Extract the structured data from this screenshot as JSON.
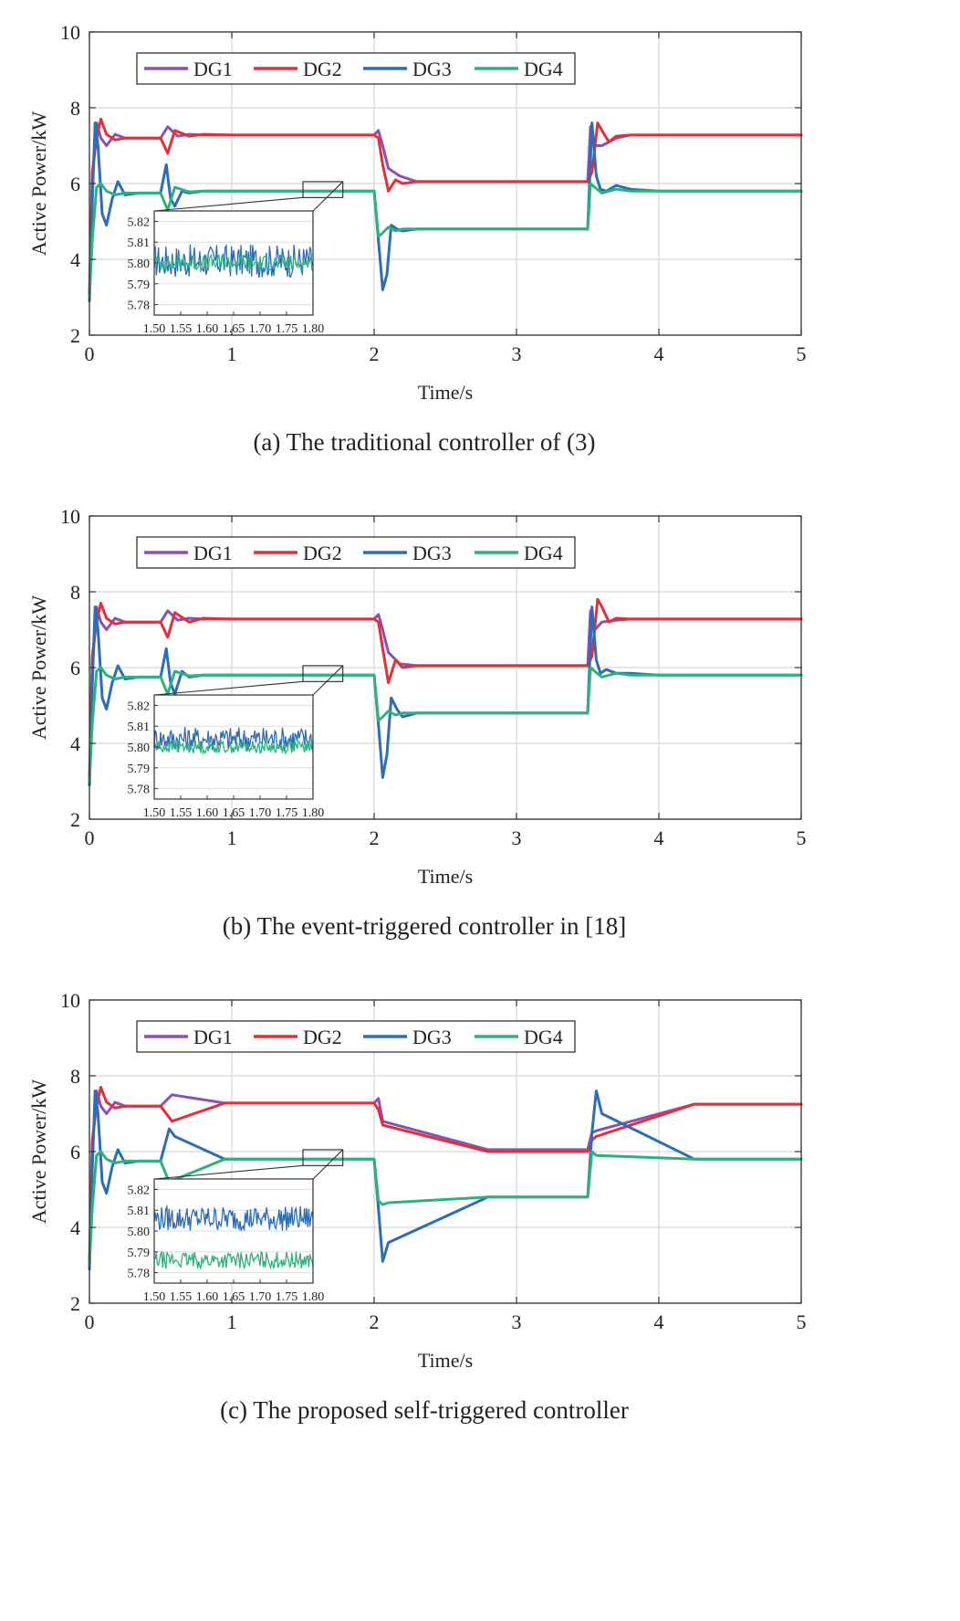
{
  "figure": {
    "legend_labels": [
      "DG1",
      "DG2",
      "DG3",
      "DG4"
    ],
    "colors": {
      "DG1": "#8e4fb3",
      "DG2": "#e0303a",
      "DG3": "#2c6db5",
      "DG4": "#2db27b"
    }
  },
  "chart_data": [
    {
      "type": "line",
      "caption": "(a) The traditional controller of (3)",
      "xlabel": "Time/s",
      "ylabel": "Active Power/kW",
      "xlim": [
        0,
        5
      ],
      "ylim": [
        2,
        10
      ],
      "xticks": [
        "0",
        "1",
        "2",
        "3",
        "4",
        "5"
      ],
      "yticks": [
        "2",
        "4",
        "6",
        "8",
        "10"
      ],
      "grid": true,
      "legend_position": "top-left",
      "series": [
        {
          "name": "DG1",
          "x": [
            0,
            0.02,
            0.05,
            0.08,
            0.12,
            0.18,
            0.25,
            0.35,
            0.5,
            0.55,
            0.62,
            0.7,
            0.8,
            1.0,
            1.5,
            2.0,
            2.03,
            2.06,
            2.1,
            2.18,
            2.3,
            2.5,
            3.0,
            3.5,
            3.52,
            3.55,
            3.6,
            3.7,
            3.8,
            4.0,
            4.5,
            5.0
          ],
          "y": [
            3.0,
            6.0,
            7.6,
            7.2,
            7.0,
            7.3,
            7.2,
            7.2,
            7.2,
            7.5,
            7.25,
            7.3,
            7.28,
            7.28,
            7.28,
            7.28,
            7.4,
            7.0,
            6.4,
            6.2,
            6.05,
            6.05,
            6.05,
            6.05,
            7.5,
            7.0,
            7.0,
            7.2,
            7.28,
            7.28,
            7.28,
            7.28
          ]
        },
        {
          "name": "DG2",
          "x": [
            0,
            0.02,
            0.05,
            0.08,
            0.12,
            0.18,
            0.25,
            0.35,
            0.5,
            0.55,
            0.6,
            0.7,
            0.8,
            1.0,
            1.5,
            2.0,
            2.03,
            2.06,
            2.1,
            2.15,
            2.2,
            2.3,
            2.5,
            3.0,
            3.5,
            3.53,
            3.57,
            3.6,
            3.65,
            3.7,
            3.8,
            4.0,
            4.5,
            5.0
          ],
          "y": [
            3.0,
            6.3,
            7.2,
            7.7,
            7.3,
            7.15,
            7.2,
            7.2,
            7.2,
            6.8,
            7.4,
            7.25,
            7.3,
            7.28,
            7.28,
            7.28,
            7.2,
            6.5,
            5.8,
            6.1,
            6.0,
            6.05,
            6.05,
            6.05,
            6.05,
            6.3,
            7.6,
            7.4,
            7.1,
            7.25,
            7.28,
            7.28,
            7.28,
            7.28
          ]
        },
        {
          "name": "DG3",
          "x": [
            0,
            0.02,
            0.04,
            0.06,
            0.09,
            0.12,
            0.16,
            0.2,
            0.25,
            0.35,
            0.5,
            0.54,
            0.57,
            0.6,
            0.65,
            0.7,
            0.8,
            1.0,
            1.5,
            2.0,
            2.03,
            2.06,
            2.09,
            2.12,
            2.16,
            2.2,
            2.3,
            2.5,
            3.0,
            3.5,
            3.53,
            3.56,
            3.59,
            3.63,
            3.7,
            3.8,
            4.0,
            4.5,
            5.0
          ],
          "y": [
            2.9,
            5.5,
            7.6,
            7.0,
            5.2,
            4.9,
            5.6,
            6.05,
            5.7,
            5.75,
            5.75,
            6.5,
            5.6,
            5.4,
            5.8,
            5.75,
            5.8,
            5.8,
            5.8,
            5.8,
            4.5,
            3.2,
            3.6,
            4.9,
            4.8,
            4.75,
            4.8,
            4.8,
            4.8,
            4.8,
            7.6,
            6.2,
            5.85,
            5.8,
            5.95,
            5.85,
            5.8,
            5.8,
            5.8
          ]
        },
        {
          "name": "DG4",
          "x": [
            0,
            0.02,
            0.05,
            0.08,
            0.12,
            0.18,
            0.25,
            0.35,
            0.5,
            0.55,
            0.6,
            0.7,
            0.8,
            1.0,
            1.5,
            2.0,
            2.03,
            2.06,
            2.1,
            2.15,
            2.2,
            2.3,
            2.5,
            3.0,
            3.5,
            3.52,
            3.55,
            3.6,
            3.7,
            3.8,
            4.0,
            4.5,
            5.0
          ],
          "y": [
            3.0,
            4.5,
            5.9,
            6.0,
            5.8,
            5.7,
            5.75,
            5.75,
            5.75,
            5.3,
            5.9,
            5.78,
            5.8,
            5.8,
            5.8,
            5.8,
            4.6,
            4.7,
            4.85,
            4.75,
            4.8,
            4.8,
            4.8,
            4.8,
            4.8,
            6.0,
            5.9,
            5.75,
            5.85,
            5.8,
            5.8,
            5.8,
            5.8
          ]
        }
      ],
      "inset": {
        "xlim": [
          1.5,
          1.8
        ],
        "ylim": [
          5.775,
          5.825
        ],
        "xticks": [
          "1.50",
          "1.55",
          "1.60",
          "1.65",
          "1.70",
          "1.75",
          "1.80"
        ],
        "yticks": [
          "5.78",
          "5.79",
          "5.80",
          "5.81",
          "5.82"
        ],
        "series": [
          {
            "name": "DG3",
            "mean": 5.801,
            "amplitude": 0.008
          },
          {
            "name": "DG4",
            "mean": 5.8,
            "amplitude": 0.004
          }
        ]
      }
    },
    {
      "type": "line",
      "caption": "(b) The event-triggered controller in [18]",
      "xlabel": "Time/s",
      "ylabel": "Active Power/kW",
      "xlim": [
        0,
        5
      ],
      "ylim": [
        2,
        10
      ],
      "xticks": [
        "0",
        "1",
        "2",
        "3",
        "4",
        "5"
      ],
      "yticks": [
        "2",
        "4",
        "6",
        "8",
        "10"
      ],
      "grid": true,
      "legend_position": "top-left",
      "series": [
        {
          "name": "DG1",
          "x": [
            0,
            0.02,
            0.05,
            0.08,
            0.12,
            0.18,
            0.25,
            0.35,
            0.5,
            0.55,
            0.62,
            0.7,
            0.8,
            1.0,
            1.5,
            2.0,
            2.03,
            2.06,
            2.1,
            2.18,
            2.3,
            2.5,
            3.0,
            3.5,
            3.52,
            3.55,
            3.6,
            3.7,
            3.8,
            4.0,
            4.5,
            5.0
          ],
          "y": [
            3.0,
            6.0,
            7.6,
            7.2,
            7.0,
            7.3,
            7.2,
            7.2,
            7.2,
            7.5,
            7.25,
            7.3,
            7.28,
            7.28,
            7.28,
            7.28,
            7.4,
            7.0,
            6.4,
            6.1,
            6.05,
            6.05,
            6.05,
            6.05,
            7.5,
            7.0,
            7.2,
            7.25,
            7.28,
            7.28,
            7.28,
            7.28
          ]
        },
        {
          "name": "DG2",
          "x": [
            0,
            0.02,
            0.05,
            0.08,
            0.12,
            0.18,
            0.25,
            0.35,
            0.5,
            0.55,
            0.6,
            0.7,
            0.8,
            1.0,
            1.5,
            2.0,
            2.03,
            2.06,
            2.1,
            2.15,
            2.2,
            2.3,
            2.5,
            3.0,
            3.5,
            3.53,
            3.57,
            3.6,
            3.65,
            3.7,
            3.8,
            4.0,
            4.5,
            5.0
          ],
          "y": [
            3.0,
            6.3,
            7.2,
            7.7,
            7.3,
            7.15,
            7.2,
            7.2,
            7.2,
            6.8,
            7.45,
            7.2,
            7.3,
            7.28,
            7.28,
            7.28,
            7.2,
            6.5,
            5.6,
            6.2,
            6.0,
            6.05,
            6.05,
            6.05,
            6.05,
            6.3,
            7.8,
            7.6,
            7.2,
            7.3,
            7.28,
            7.28,
            7.28,
            7.28
          ]
        },
        {
          "name": "DG3",
          "x": [
            0,
            0.02,
            0.04,
            0.06,
            0.09,
            0.12,
            0.16,
            0.2,
            0.25,
            0.35,
            0.5,
            0.54,
            0.57,
            0.6,
            0.65,
            0.7,
            0.8,
            1.0,
            1.5,
            2.0,
            2.03,
            2.06,
            2.09,
            2.12,
            2.16,
            2.2,
            2.3,
            2.5,
            3.0,
            3.5,
            3.53,
            3.56,
            3.59,
            3.63,
            3.7,
            3.8,
            4.0,
            4.5,
            5.0
          ],
          "y": [
            2.9,
            5.5,
            7.6,
            7.0,
            5.2,
            4.9,
            5.6,
            6.05,
            5.7,
            5.75,
            5.75,
            6.5,
            5.6,
            5.3,
            5.9,
            5.75,
            5.8,
            5.8,
            5.8,
            5.8,
            4.5,
            3.1,
            3.7,
            5.2,
            4.9,
            4.7,
            4.8,
            4.8,
            4.8,
            4.8,
            7.6,
            6.2,
            5.85,
            5.95,
            5.85,
            5.85,
            5.8,
            5.8,
            5.8
          ]
        },
        {
          "name": "DG4",
          "x": [
            0,
            0.02,
            0.05,
            0.08,
            0.12,
            0.18,
            0.25,
            0.35,
            0.5,
            0.55,
            0.6,
            0.7,
            0.8,
            1.0,
            1.5,
            2.0,
            2.03,
            2.06,
            2.1,
            2.15,
            2.2,
            2.3,
            2.5,
            3.0,
            3.5,
            3.52,
            3.55,
            3.6,
            3.7,
            3.8,
            4.0,
            4.5,
            5.0
          ],
          "y": [
            3.0,
            4.5,
            5.9,
            6.0,
            5.8,
            5.7,
            5.75,
            5.75,
            5.75,
            5.3,
            5.9,
            5.78,
            5.8,
            5.8,
            5.8,
            5.8,
            4.6,
            4.7,
            4.85,
            4.75,
            4.8,
            4.8,
            4.8,
            4.8,
            4.8,
            6.0,
            5.9,
            5.75,
            5.85,
            5.8,
            5.8,
            5.8,
            5.8
          ]
        }
      ],
      "inset": {
        "xlim": [
          1.5,
          1.8
        ],
        "ylim": [
          5.775,
          5.825
        ],
        "xticks": [
          "1.50",
          "1.55",
          "1.60",
          "1.65",
          "1.70",
          "1.75",
          "1.80"
        ],
        "yticks": [
          "5.78",
          "5.79",
          "5.80",
          "5.81",
          "5.82"
        ],
        "series": [
          {
            "name": "DG3",
            "mean": 5.804,
            "amplitude": 0.006
          },
          {
            "name": "DG4",
            "mean": 5.8,
            "amplitude": 0.003
          }
        ]
      }
    },
    {
      "type": "line",
      "caption": "(c) The proposed self-triggered controller",
      "xlabel": "Time/s",
      "ylabel": "Active Power/kW",
      "xlim": [
        0,
        5
      ],
      "ylim": [
        2,
        10
      ],
      "xticks": [
        "0",
        "1",
        "2",
        "3",
        "4",
        "5"
      ],
      "yticks": [
        "2",
        "4",
        "6",
        "8",
        "10"
      ],
      "grid": true,
      "legend_position": "top-left",
      "series": [
        {
          "name": "DG1",
          "x": [
            0,
            0.02,
            0.05,
            0.08,
            0.12,
            0.18,
            0.25,
            0.35,
            0.5,
            0.58,
            0.95,
            1.0,
            1.5,
            2.0,
            2.03,
            2.06,
            2.8,
            3.0,
            3.5,
            3.53,
            3.56,
            4.25,
            4.5,
            5.0
          ],
          "y": [
            3.0,
            6.0,
            7.6,
            7.2,
            7.0,
            7.3,
            7.2,
            7.2,
            7.2,
            7.5,
            7.28,
            7.28,
            7.28,
            7.28,
            7.4,
            6.8,
            6.05,
            6.05,
            6.05,
            6.5,
            6.55,
            7.25,
            7.25,
            7.25
          ]
        },
        {
          "name": "DG2",
          "x": [
            0,
            0.02,
            0.05,
            0.08,
            0.12,
            0.18,
            0.25,
            0.35,
            0.5,
            0.58,
            0.95,
            1.0,
            1.5,
            2.0,
            2.03,
            2.06,
            2.8,
            3.0,
            3.5,
            3.53,
            3.56,
            4.25,
            4.5,
            5.0
          ],
          "y": [
            3.0,
            6.3,
            7.2,
            7.7,
            7.3,
            7.15,
            7.2,
            7.2,
            7.2,
            6.8,
            7.28,
            7.28,
            7.28,
            7.28,
            7.1,
            6.7,
            6.0,
            6.0,
            6.0,
            6.3,
            6.4,
            7.25,
            7.25,
            7.25
          ]
        },
        {
          "name": "DG3",
          "x": [
            0,
            0.02,
            0.04,
            0.06,
            0.09,
            0.12,
            0.16,
            0.2,
            0.25,
            0.35,
            0.5,
            0.56,
            0.6,
            0.95,
            1.0,
            1.5,
            2.0,
            2.03,
            2.06,
            2.1,
            2.8,
            3.0,
            3.5,
            3.53,
            3.56,
            3.6,
            4.25,
            4.5,
            5.0
          ],
          "y": [
            2.9,
            5.5,
            7.6,
            7.0,
            5.2,
            4.9,
            5.6,
            6.05,
            5.7,
            5.75,
            5.75,
            6.6,
            6.4,
            5.8,
            5.8,
            5.8,
            5.8,
            4.5,
            3.1,
            3.6,
            4.8,
            4.8,
            4.8,
            6.5,
            7.6,
            7.0,
            5.8,
            5.8,
            5.8
          ]
        },
        {
          "name": "DG4",
          "x": [
            0,
            0.02,
            0.05,
            0.08,
            0.12,
            0.18,
            0.25,
            0.35,
            0.5,
            0.56,
            0.95,
            1.0,
            1.5,
            2.0,
            2.03,
            2.06,
            2.1,
            2.8,
            3.0,
            3.5,
            3.53,
            3.56,
            4.25,
            4.5,
            5.0
          ],
          "y": [
            3.0,
            4.5,
            5.9,
            6.0,
            5.8,
            5.7,
            5.75,
            5.75,
            5.75,
            5.2,
            5.8,
            5.8,
            5.8,
            5.8,
            4.7,
            4.6,
            4.65,
            4.8,
            4.8,
            4.8,
            6.0,
            5.9,
            5.8,
            5.8,
            5.8
          ]
        }
      ],
      "inset": {
        "xlim": [
          1.5,
          1.8
        ],
        "ylim": [
          5.775,
          5.825
        ],
        "xticks": [
          "1.50",
          "1.55",
          "1.60",
          "1.65",
          "1.70",
          "1.75",
          "1.80"
        ],
        "yticks": [
          "5.78",
          "5.79",
          "5.80",
          "5.81",
          "5.82"
        ],
        "series": [
          {
            "name": "DG3",
            "mean": 5.806,
            "amplitude": 0.006
          },
          {
            "name": "DG4",
            "mean": 5.786,
            "amplitude": 0.004
          }
        ]
      }
    }
  ]
}
